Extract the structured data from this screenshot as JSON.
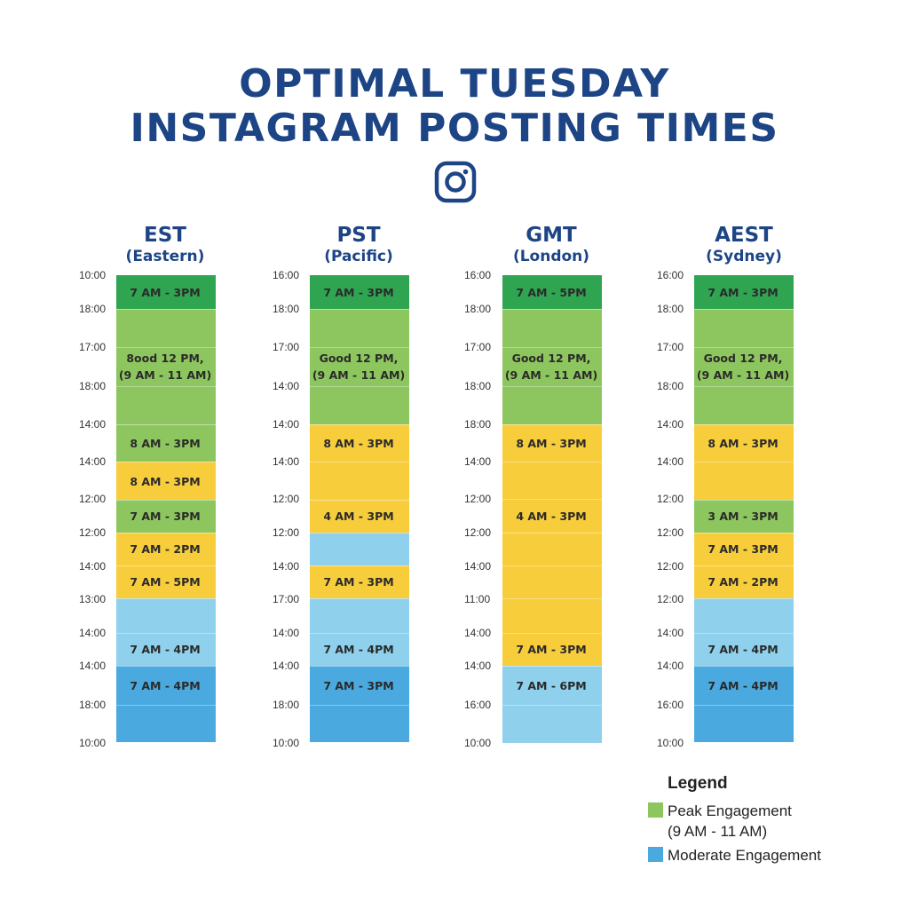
{
  "title": {
    "line1": "OPTIMAL TUESDAY",
    "line2": "INSTAGRAM POSTING TIMES",
    "icon": "instagram-icon"
  },
  "colors": {
    "dark_green": "#2fa552",
    "light_green": "#8dc65e",
    "yellow": "#f8cd3c",
    "light_blue": "#8fd1ed",
    "mid_blue": "#4aa9df",
    "title_blue": "#1d4585"
  },
  "chart_data": {
    "type": "table",
    "columns": [
      {
        "timezone": "EST",
        "region": "(Eastern)",
        "time_labels": [
          "10:00",
          "18:00",
          "17:00",
          "18:00",
          "14:00",
          "14:00",
          "12:00",
          "12:00",
          "14:00",
          "13:00",
          "14:00",
          "14:00",
          "18:00",
          "10:00"
        ],
        "blocks": [
          {
            "tier": "dark_green",
            "text": "7 AM - 3PM"
          },
          {
            "tier": "light_green",
            "text": "8ood 12 PM,\n(9 AM - 11 AM)"
          },
          {
            "tier": "light_green",
            "text": "8 AM - 3PM"
          },
          {
            "tier": "yellow",
            "text": "8 AM - 3PM"
          },
          {
            "tier": "light_green",
            "text": "7 AM - 3PM"
          },
          {
            "tier": "yellow",
            "text": "7 AM - 2PM"
          },
          {
            "tier": "yellow",
            "text": "7 AM - 5PM"
          },
          {
            "tier": "light_blue",
            "text": "7 AM - 4PM"
          },
          {
            "tier": "mid_blue",
            "text": "7 AM - 4PM"
          }
        ]
      },
      {
        "timezone": "PST",
        "region": "(Pacific)",
        "time_labels": [
          "16:00",
          "18:00",
          "17:00",
          "14:00",
          "14:00",
          "14:00",
          "12:00",
          "12:00",
          "14:00",
          "17:00",
          "14:00",
          "14:00",
          "18:00",
          "10:00"
        ],
        "blocks": [
          {
            "tier": "dark_green",
            "text": "7 AM - 3PM"
          },
          {
            "tier": "light_green",
            "text": "Good 12 PM,\n(9 AM - 11 AM)"
          },
          {
            "tier": "yellow",
            "text": "8 AM - 3PM"
          },
          {
            "tier": "yellow",
            "text": "4 AM - 3PM"
          },
          {
            "tier": "light_blue",
            "text": ""
          },
          {
            "tier": "yellow",
            "text": "7 AM - 3PM"
          },
          {
            "tier": "light_blue",
            "text": "7 AM - 4PM"
          },
          {
            "tier": "mid_blue",
            "text": "7 AM - 3PM"
          }
        ]
      },
      {
        "timezone": "GMT",
        "region": "(London)",
        "time_labels": [
          "16:00",
          "18:00",
          "17:00",
          "18:00",
          "18:00",
          "14:00",
          "12:00",
          "12:00",
          "14:00",
          "11:00",
          "14:00",
          "14:00",
          "16:00",
          "10:00"
        ],
        "blocks": [
          {
            "tier": "dark_green",
            "text": "7 AM - 5PM"
          },
          {
            "tier": "light_green",
            "text": "Good 12 PM,\n(9 AM - 11 AM)"
          },
          {
            "tier": "yellow",
            "text": "8 AM - 3PM"
          },
          {
            "tier": "yellow",
            "text": "4 AM - 3PM"
          },
          {
            "tier": "light_blue",
            "text": "7 AM - 3PM"
          },
          {
            "tier": "mid_blue",
            "text": "7 AM - 6PM"
          }
        ]
      },
      {
        "timezone": "AEST",
        "region": "(Sydney)",
        "time_labels": [
          "16:00",
          "18:00",
          "17:00",
          "18:00",
          "14:00",
          "14:00",
          "12:00",
          "12:00",
          "12:00",
          "12:00",
          "14:00",
          "14:00",
          "16:00",
          "10:00"
        ],
        "blocks": [
          {
            "tier": "dark_green",
            "text": "7 AM - 3PM"
          },
          {
            "tier": "light_green",
            "text": "Good 12 PM,\n(9 AM - 11 AM)"
          },
          {
            "tier": "yellow",
            "text": "8 AM - 3PM"
          },
          {
            "tier": "light_green",
            "text": "3 AM - 3PM"
          },
          {
            "tier": "yellow",
            "text": "7 AM - 3PM"
          },
          {
            "tier": "yellow",
            "text": "7 AM - 2PM"
          },
          {
            "tier": "light_blue",
            "text": "7 AM - 4PM"
          },
          {
            "tier": "mid_blue",
            "text": "7 AM - 4PM"
          }
        ]
      }
    ]
  },
  "legend": {
    "title": "Legend",
    "items": [
      {
        "tier": "light_green",
        "text": "Peak Engagement\n(9 AM - 11 AM)"
      },
      {
        "tier": "mid_blue",
        "text": "Moderate Engagement"
      }
    ]
  }
}
